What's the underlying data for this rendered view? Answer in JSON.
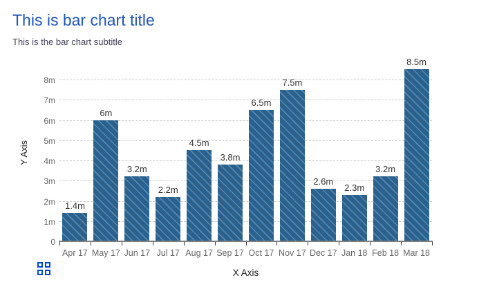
{
  "page": {
    "title": "This is bar chart title",
    "subtitle": "This is the bar chart subtitle"
  },
  "chart_data": {
    "type": "bar",
    "title": "This is bar chart title",
    "subtitle": "This is the bar chart subtitle",
    "categories": [
      "Apr 17",
      "May 17",
      "Jun 17",
      "Jul 17",
      "Aug 17",
      "Sep 17",
      "Oct 17",
      "Nov 17",
      "Dec 17",
      "Jan 18",
      "Feb 18",
      "Mar 18"
    ],
    "values": [
      1.4,
      6,
      3.2,
      2.2,
      4.5,
      3.8,
      6.5,
      7.5,
      2.6,
      2.3,
      3.2,
      8.5
    ],
    "value_labels": [
      "1.4m",
      "6m",
      "3.2m",
      "2.2m",
      "4.5m",
      "3.8m",
      "6.5m",
      "7.5m",
      "2.6m",
      "2.3m",
      "3.2m",
      "8.5m"
    ],
    "xlabel": "X Axis",
    "ylabel": "Y Axis",
    "ylim": [
      0,
      8.5
    ],
    "y_ticks": [
      "0",
      "1m",
      "2m",
      "3m",
      "4m",
      "5m",
      "6m",
      "7m",
      "8m"
    ],
    "grid": "horizontal dashed gridlines on",
    "legend": "none",
    "bar_pattern": "diagonal stripe hatch"
  },
  "colors": {
    "title_text": "#2255bb",
    "subtitle_text": "#42425a",
    "bar_fill": "#29618f",
    "bar_stripe": "#4d80a8",
    "gridline": "#cccccc",
    "axis_line": "#7e7e7e",
    "tick_label": "#666666",
    "value_label": "#333333",
    "axis_title": "#222222",
    "grid_icon_blue": "#0047cc"
  },
  "icons": {
    "grid_menu": "grid-of-four-squares"
  }
}
